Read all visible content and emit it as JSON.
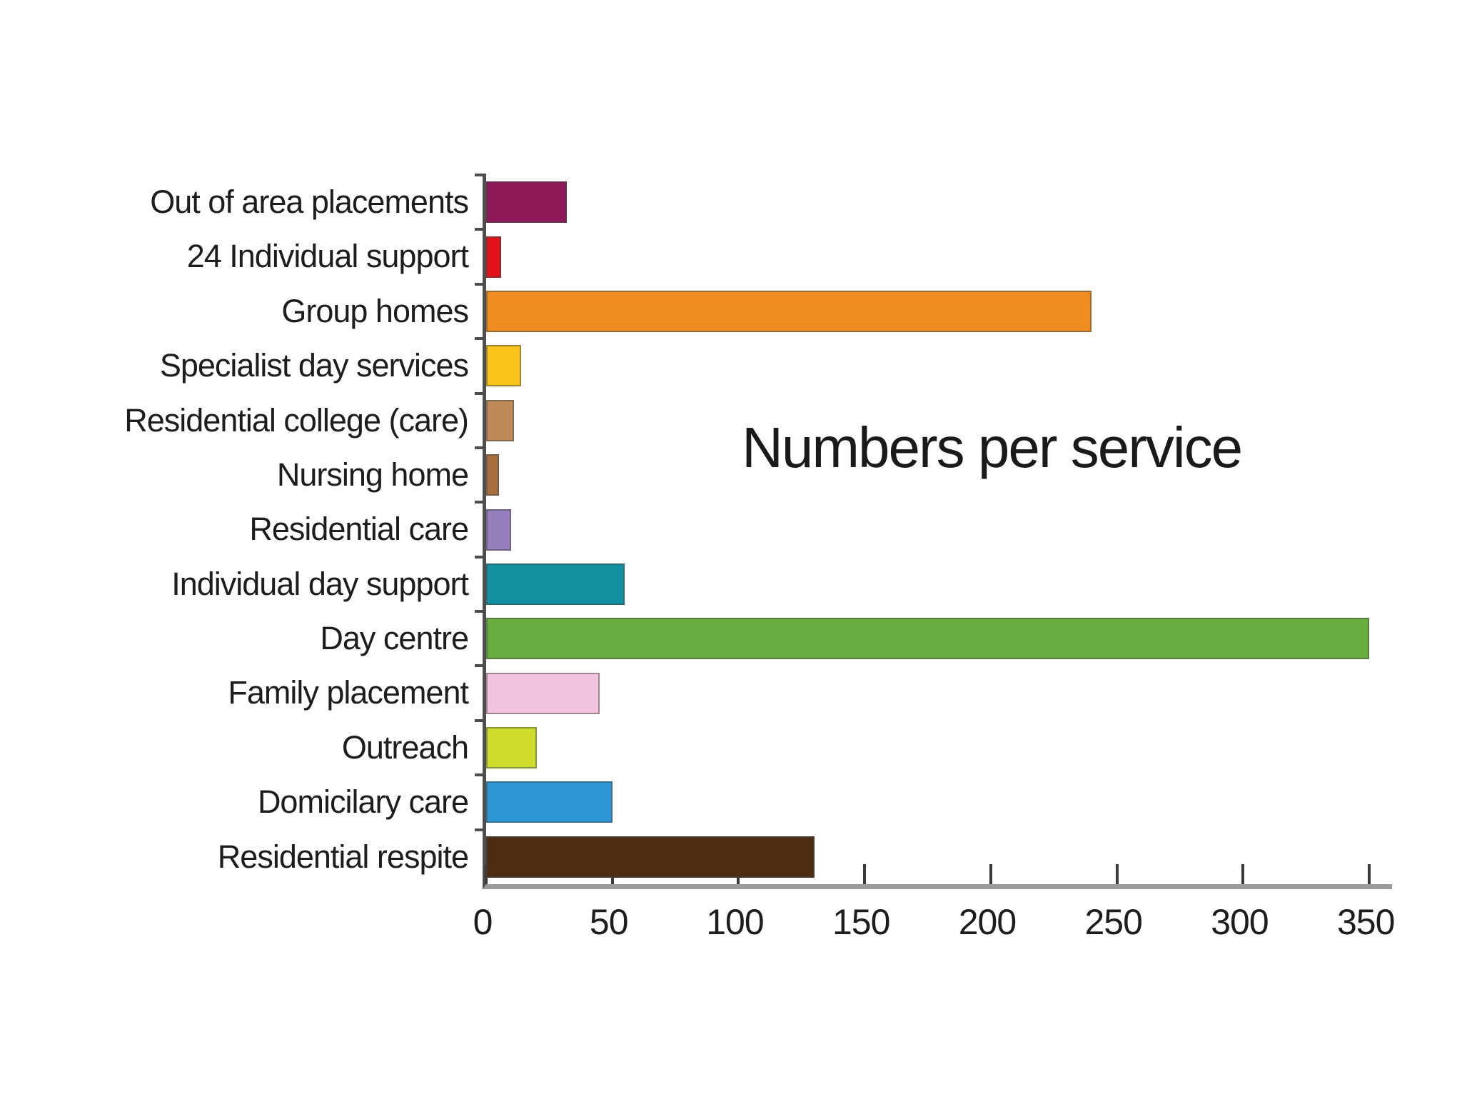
{
  "chart_data": {
    "type": "bar",
    "orientation": "horizontal",
    "title": "Numbers per service",
    "categories": [
      "Out of area placements",
      "24 Individual support",
      "Group homes",
      "Specialist day services",
      "Residential college (care)",
      "Nursing home",
      "Residential care",
      "Individual day support",
      "Day centre",
      "Family placement",
      "Outreach",
      "Domicilary care",
      "Residential respite"
    ],
    "values": [
      32,
      6,
      240,
      14,
      11,
      5,
      10,
      55,
      350,
      45,
      20,
      50,
      130
    ],
    "colors": [
      "#8E1757",
      "#E21219",
      "#F18C21",
      "#FAC41C",
      "#BF8A58",
      "#A8703E",
      "#9580BD",
      "#12909F",
      "#68AE3E",
      "#F2C3DC",
      "#CEDC2B",
      "#2D96D4",
      "#4C2D13"
    ],
    "x_ticks": [
      0,
      50,
      100,
      150,
      200,
      250,
      300,
      350
    ],
    "xlim": [
      0,
      359
    ],
    "xlabel": "",
    "ylabel": "",
    "grid": false,
    "legend_position": "none",
    "axis_color": "#4d4d4d",
    "axis_band_color": "#9b9b9b",
    "text_color": "#1c1c1c",
    "background_color": "#ffffff"
  }
}
